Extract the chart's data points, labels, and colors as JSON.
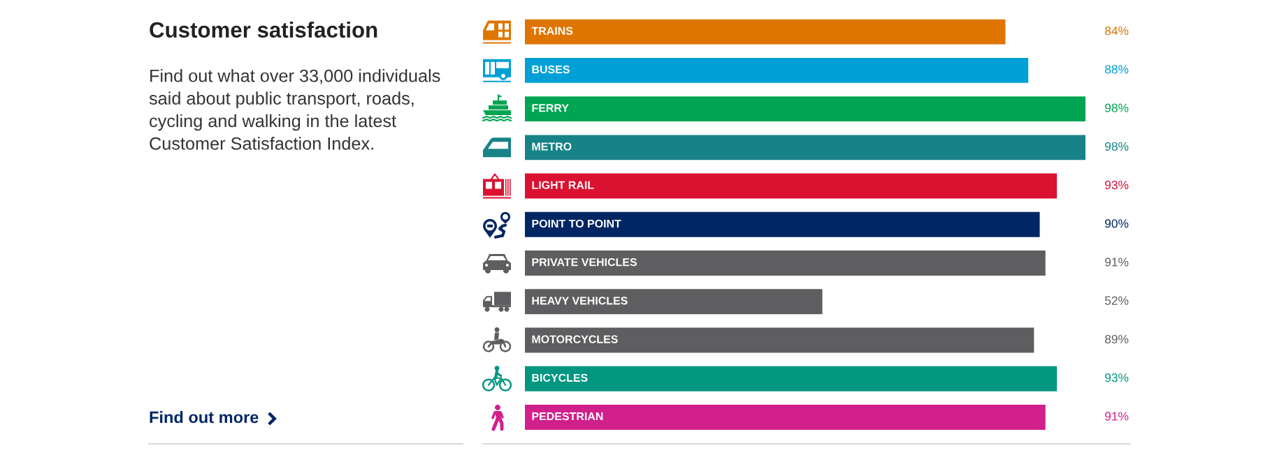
{
  "chart_data": {
    "type": "bar",
    "orientation": "horizontal",
    "tick_labels": false,
    "title": "Customer satisfaction",
    "subtitle": "Find out what over 33,000 individuals\nsaid about public transport, roads,\ncycling and walking in the latest\nCustomer Satisfaction Index.",
    "annotations": [
      "Find out more"
    ],
    "categories": [
      "TRAINS",
      "BUSES",
      "FERRY",
      "METRO",
      "LIGHT RAIL",
      "POINT TO POINT",
      "PRIVATE VEHICLES",
      "HEAVY VEHICLES",
      "MOTORCYCLES",
      "BICYCLES",
      "PEDESTRIAN"
    ],
    "values": [
      84,
      88,
      98,
      98,
      93,
      90,
      91,
      52,
      89,
      93,
      91
    ],
    "value_labels": [
      "84%",
      "88%",
      "98%",
      "98%",
      "93%",
      "90%",
      "91%",
      "52%",
      "89%",
      "93%",
      "91%"
    ],
    "colors": [
      "#de7500",
      "#00a0d6",
      "#00a551",
      "#178388",
      "#db1131",
      "#002664",
      "#5e5e60",
      "#5e5e60",
      "#5e5e60",
      "#009680",
      "#d11f8b"
    ]
  }
}
